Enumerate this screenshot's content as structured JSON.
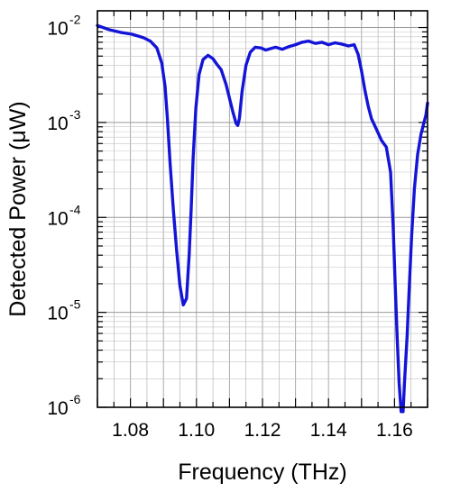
{
  "chart_data": {
    "type": "line",
    "title": "",
    "xlabel": "Frequency (THz)",
    "ylabel": "Detected Power (μW)",
    "xlim": [
      1.07,
      1.17
    ],
    "ylim": [
      1e-06,
      0.015
    ],
    "yscale": "log",
    "grid": true,
    "x_ticks": [
      1.08,
      1.1,
      1.12,
      1.14,
      1.16
    ],
    "x_tick_labels": [
      "1.08",
      "1.10",
      "1.12",
      "1.14",
      "1.16"
    ],
    "y_ticks": [
      1e-06,
      1e-05,
      0.0001,
      0.001,
      0.01
    ],
    "y_tick_labels": [
      {
        "base": "10",
        "exp": "-6"
      },
      {
        "base": "10",
        "exp": "-5"
      },
      {
        "base": "10",
        "exp": "-4"
      },
      {
        "base": "10",
        "exp": "-3"
      },
      {
        "base": "10",
        "exp": "-2"
      }
    ],
    "series": [
      {
        "color": "#1414d8",
        "x": [
          1.07,
          1.0735,
          1.077,
          1.0805,
          1.084,
          1.086,
          1.088,
          1.0895,
          1.0905,
          1.0912,
          1.092,
          1.093,
          1.094,
          1.095,
          1.096,
          1.097,
          1.0978,
          1.0984,
          1.099,
          1.0998,
          1.1008,
          1.102,
          1.1035,
          1.105,
          1.1062,
          1.1075,
          1.109,
          1.11,
          1.111,
          1.112,
          1.1125,
          1.113,
          1.1138,
          1.115,
          1.1163,
          1.1178,
          1.1195,
          1.121,
          1.1225,
          1.124,
          1.126,
          1.128,
          1.13,
          1.132,
          1.134,
          1.136,
          1.138,
          1.14,
          1.142,
          1.144,
          1.146,
          1.1478,
          1.149,
          1.15,
          1.151,
          1.152,
          1.153,
          1.1545,
          1.156,
          1.1575,
          1.1588,
          1.1596,
          1.1602,
          1.1608,
          1.1614,
          1.162,
          1.1626,
          1.163,
          1.1638,
          1.1645,
          1.1652,
          1.166,
          1.167,
          1.168,
          1.1695,
          1.17
        ],
        "y": [
          0.0105,
          0.0095,
          0.0089,
          0.0085,
          0.0078,
          0.0072,
          0.0061,
          0.0042,
          0.0024,
          0.0011,
          0.00038,
          0.00012,
          4.5e-05,
          1.9e-05,
          1.2e-05,
          1.4e-05,
          4e-05,
          0.00012,
          0.00042,
          0.0014,
          0.0032,
          0.0046,
          0.0051,
          0.0047,
          0.0041,
          0.0036,
          0.0025,
          0.0018,
          0.0013,
          0.00098,
          0.00093,
          0.0011,
          0.0021,
          0.004,
          0.0055,
          0.0062,
          0.0061,
          0.0058,
          0.006,
          0.0062,
          0.0059,
          0.0063,
          0.0066,
          0.007,
          0.0072,
          0.0068,
          0.007,
          0.0066,
          0.0069,
          0.0067,
          0.0064,
          0.0066,
          0.0052,
          0.0035,
          0.0022,
          0.0015,
          0.0011,
          0.00085,
          0.00065,
          0.00055,
          0.0003,
          8e-05,
          2e-05,
          5.5e-06,
          1.8e-06,
          9e-07,
          9e-07,
          1.8e-06,
          5.5e-06,
          2e-05,
          6.5e-05,
          0.0002,
          0.00046,
          0.00075,
          0.0012,
          0.0016
        ]
      }
    ]
  }
}
